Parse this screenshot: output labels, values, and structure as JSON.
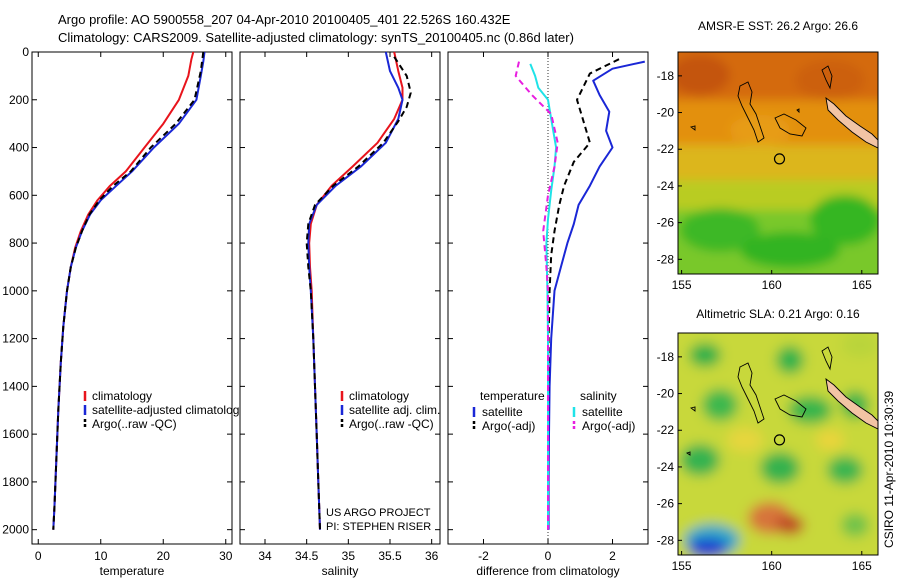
{
  "header": {
    "line1": "Argo profile: AO 5900558_207 04-Apr-2010 20100405_401 22.526S 160.432E",
    "line2": "Climatology: CARS2009. Satellite-adjusted climatology: synTS_20100405.nc (0.86d later)"
  },
  "side_label": "CSIRO 11-Apr-2010 10:30:39",
  "credit": {
    "line1": "US ARGO PROJECT",
    "line2": "PI: STEPHEN RISER"
  },
  "colors": {
    "climatology": "#e8141c",
    "satellite": "#1a27d6",
    "argo": "#000000",
    "sat_salinity": "#1fe3e8",
    "argo_adj_salinity": "#e81ee0",
    "land": "#f2c4a4"
  },
  "chart_data": [
    {
      "type": "line",
      "name": "temperature-profile",
      "xlabel": "temperature",
      "xlim": [
        -1,
        31
      ],
      "ylim": [
        0,
        2060
      ],
      "y_inverted": true,
      "xticks": [
        0,
        10,
        20,
        30
      ],
      "yticks": [
        0,
        200,
        400,
        600,
        800,
        1000,
        1200,
        1400,
        1600,
        1800,
        2000
      ],
      "legend": [
        "climatology",
        "satellite-adjusted climatology",
        "Argo(..raw -QC)"
      ],
      "series": [
        {
          "name": "climatology",
          "color": "#e8141c",
          "dash": "",
          "points": [
            [
              24.8,
              0
            ],
            [
              24.5,
              30
            ],
            [
              24.0,
              100
            ],
            [
              22.5,
              200
            ],
            [
              20.0,
              300
            ],
            [
              17.0,
              400
            ],
            [
              14.0,
              500
            ],
            [
              11.5,
              560
            ],
            [
              9.5,
              620
            ],
            [
              8.0,
              680
            ],
            [
              6.8,
              750
            ],
            [
              5.9,
              820
            ],
            [
              5.2,
              900
            ],
            [
              4.6,
              1000
            ],
            [
              4.0,
              1150
            ],
            [
              3.6,
              1300
            ],
            [
              3.2,
              1500
            ],
            [
              2.9,
              1700
            ],
            [
              2.6,
              1900
            ],
            [
              2.4,
              2000
            ]
          ]
        },
        {
          "name": "satellite-adjusted climatology",
          "color": "#1a27d6",
          "dash": "",
          "points": [
            [
              26.6,
              0
            ],
            [
              26.4,
              40
            ],
            [
              26.0,
              100
            ],
            [
              25.3,
              200
            ],
            [
              22.5,
              300
            ],
            [
              18.5,
              400
            ],
            [
              15.0,
              500
            ],
            [
              12.5,
              560
            ],
            [
              10.0,
              620
            ],
            [
              8.3,
              680
            ],
            [
              7.0,
              750
            ],
            [
              6.0,
              820
            ],
            [
              5.2,
              900
            ],
            [
              4.6,
              1000
            ],
            [
              4.0,
              1150
            ],
            [
              3.6,
              1300
            ],
            [
              3.2,
              1500
            ],
            [
              2.9,
              1700
            ],
            [
              2.6,
              1900
            ],
            [
              2.4,
              2000
            ]
          ]
        },
        {
          "name": "Argo(..raw -QC)",
          "color": "#000000",
          "dash": "6,4",
          "points": [
            [
              26.4,
              0
            ],
            [
              26.0,
              80
            ],
            [
              25.0,
              200
            ],
            [
              22.0,
              300
            ],
            [
              18.0,
              400
            ],
            [
              14.8,
              500
            ],
            [
              12.0,
              560
            ],
            [
              9.8,
              620
            ],
            [
              8.2,
              680
            ],
            [
              7.0,
              750
            ],
            [
              6.0,
              820
            ],
            [
              5.2,
              900
            ],
            [
              4.6,
              1000
            ],
            [
              4.0,
              1150
            ],
            [
              3.6,
              1300
            ],
            [
              3.2,
              1500
            ],
            [
              2.9,
              1700
            ],
            [
              2.6,
              1900
            ],
            [
              2.4,
              2000
            ]
          ]
        }
      ]
    },
    {
      "type": "line",
      "name": "salinity-profile",
      "xlabel": "salinity",
      "xlim": [
        33.7,
        36.1
      ],
      "ylim": [
        0,
        2060
      ],
      "y_inverted": true,
      "xticks": [
        34,
        34.5,
        35,
        35.5,
        36
      ],
      "legend": [
        "climatology",
        "satellite adj. clim.",
        "Argo(..raw -QC)"
      ],
      "series": [
        {
          "name": "climatology",
          "color": "#e8141c",
          "dash": "",
          "points": [
            [
              35.55,
              0
            ],
            [
              35.6,
              80
            ],
            [
              35.65,
              150
            ],
            [
              35.65,
              200
            ],
            [
              35.55,
              280
            ],
            [
              35.35,
              380
            ],
            [
              35.05,
              480
            ],
            [
              34.8,
              560
            ],
            [
              34.62,
              640
            ],
            [
              34.55,
              720
            ],
            [
              34.53,
              800
            ],
            [
              34.54,
              900
            ],
            [
              34.56,
              1000
            ],
            [
              34.58,
              1200
            ],
            [
              34.6,
              1400
            ],
            [
              34.62,
              1600
            ],
            [
              34.64,
              1800
            ],
            [
              34.66,
              2000
            ]
          ]
        },
        {
          "name": "satellite adj. clim.",
          "color": "#1a27d6",
          "dash": "",
          "points": [
            [
              35.45,
              0
            ],
            [
              35.5,
              80
            ],
            [
              35.6,
              150
            ],
            [
              35.65,
              200
            ],
            [
              35.6,
              280
            ],
            [
              35.45,
              380
            ],
            [
              35.15,
              480
            ],
            [
              34.85,
              560
            ],
            [
              34.62,
              640
            ],
            [
              34.53,
              720
            ],
            [
              34.52,
              800
            ],
            [
              34.53,
              900
            ],
            [
              34.55,
              1000
            ],
            [
              34.58,
              1200
            ],
            [
              34.6,
              1400
            ],
            [
              34.62,
              1600
            ],
            [
              34.64,
              1800
            ],
            [
              34.66,
              2000
            ]
          ]
        },
        {
          "name": "Argo(..raw -QC)",
          "color": "#000000",
          "dash": "6,4",
          "points": [
            [
              35.55,
              20
            ],
            [
              35.7,
              100
            ],
            [
              35.75,
              170
            ],
            [
              35.7,
              230
            ],
            [
              35.6,
              290
            ],
            [
              35.42,
              380
            ],
            [
              35.12,
              480
            ],
            [
              34.82,
              560
            ],
            [
              34.6,
              640
            ],
            [
              34.52,
              720
            ],
            [
              34.5,
              800
            ],
            [
              34.52,
              900
            ],
            [
              34.55,
              1000
            ],
            [
              34.58,
              1200
            ],
            [
              34.6,
              1400
            ],
            [
              34.62,
              1600
            ],
            [
              34.64,
              1800
            ],
            [
              34.66,
              2000
            ]
          ]
        }
      ]
    },
    {
      "type": "line",
      "name": "difference-profile",
      "xlabel": "difference from climatology",
      "xlim": [
        -3.1,
        3.1
      ],
      "ylim": [
        0,
        2060
      ],
      "y_inverted": true,
      "xticks": [
        -2,
        0,
        2
      ],
      "zero_line": true,
      "legend_headers": [
        "temperature",
        "salinity"
      ],
      "legend": [
        "satellite",
        "Argo(-adj)",
        "satellite",
        "Argo(-adj)"
      ],
      "series": [
        {
          "name": "temperature satellite",
          "color": "#1a27d6",
          "dash": "",
          "points": [
            [
              3.0,
              40
            ],
            [
              2.0,
              70
            ],
            [
              1.4,
              120
            ],
            [
              1.6,
              180
            ],
            [
              1.9,
              250
            ],
            [
              1.8,
              330
            ],
            [
              2.0,
              400
            ],
            [
              1.6,
              480
            ],
            [
              1.3,
              560
            ],
            [
              0.95,
              640
            ],
            [
              0.8,
              720
            ],
            [
              0.6,
              800
            ],
            [
              0.4,
              900
            ],
            [
              0.2,
              1000
            ],
            [
              0.1,
              1200
            ],
            [
              0.05,
              1400
            ],
            [
              0.03,
              1600
            ],
            [
              0.02,
              1800
            ],
            [
              0.02,
              2000
            ]
          ]
        },
        {
          "name": "temperature Argo(-adj)",
          "color": "#000000",
          "dash": "6,4",
          "points": [
            [
              2.2,
              30
            ],
            [
              1.3,
              90
            ],
            [
              0.9,
              200
            ],
            [
              1.1,
              290
            ],
            [
              1.3,
              380
            ],
            [
              0.8,
              460
            ],
            [
              0.5,
              560
            ],
            [
              0.35,
              640
            ],
            [
              0.2,
              750
            ],
            [
              0.1,
              850
            ],
            [
              0.05,
              1000
            ],
            [
              0.02,
              1200
            ],
            [
              0.01,
              1400
            ],
            [
              0,
              1600
            ],
            [
              0,
              1800
            ],
            [
              0,
              2000
            ]
          ]
        },
        {
          "name": "salinity satellite",
          "color": "#1fe3e8",
          "dash": "",
          "points": [
            [
              -0.55,
              50
            ],
            [
              -0.4,
              100
            ],
            [
              -0.3,
              150
            ],
            [
              0,
              200
            ],
            [
              0.1,
              280
            ],
            [
              0.25,
              400
            ],
            [
              0.2,
              480
            ],
            [
              0.1,
              580
            ],
            [
              0,
              700
            ],
            [
              -0.05,
              800
            ],
            [
              -0.02,
              1000
            ],
            [
              0,
              1200
            ],
            [
              0,
              1400
            ],
            [
              0,
              1600
            ],
            [
              0,
              1800
            ],
            [
              0,
              2000
            ]
          ]
        },
        {
          "name": "salinity Argo(-adj)",
          "color": "#e81ee0",
          "dash": "6,4",
          "points": [
            [
              -0.9,
              40
            ],
            [
              -1.0,
              100
            ],
            [
              -0.5,
              180
            ],
            [
              0.1,
              260
            ],
            [
              0.3,
              380
            ],
            [
              0.2,
              480
            ],
            [
              0,
              600
            ],
            [
              -0.15,
              750
            ],
            [
              -0.05,
              900
            ],
            [
              0,
              1000
            ],
            [
              0,
              1200
            ],
            [
              0,
              1400
            ],
            [
              0,
              1600
            ],
            [
              0,
              1800
            ],
            [
              0,
              2000
            ]
          ]
        }
      ]
    },
    {
      "type": "heatmap",
      "name": "sst-map",
      "title": "AMSR-E SST: 26.2 Argo: 26.6",
      "xlim": [
        154.8,
        165.9
      ],
      "ylim": [
        -28.8,
        -16.7
      ],
      "xticks": [
        155,
        160,
        165
      ],
      "yticks": [
        -18,
        -20,
        -22,
        -24,
        -26,
        -28
      ],
      "marker": {
        "lon": 160.432,
        "lat": -22.526
      }
    },
    {
      "type": "heatmap",
      "name": "sla-map",
      "title": "Altimetric SLA: 0.21 Argo: 0.16",
      "xlim": [
        154.8,
        165.9
      ],
      "ylim": [
        -28.8,
        -16.7
      ],
      "xticks": [
        155,
        160,
        165
      ],
      "yticks": [
        -18,
        -20,
        -22,
        -24,
        -26,
        -28
      ],
      "marker": {
        "lon": 160.432,
        "lat": -22.526
      }
    }
  ]
}
